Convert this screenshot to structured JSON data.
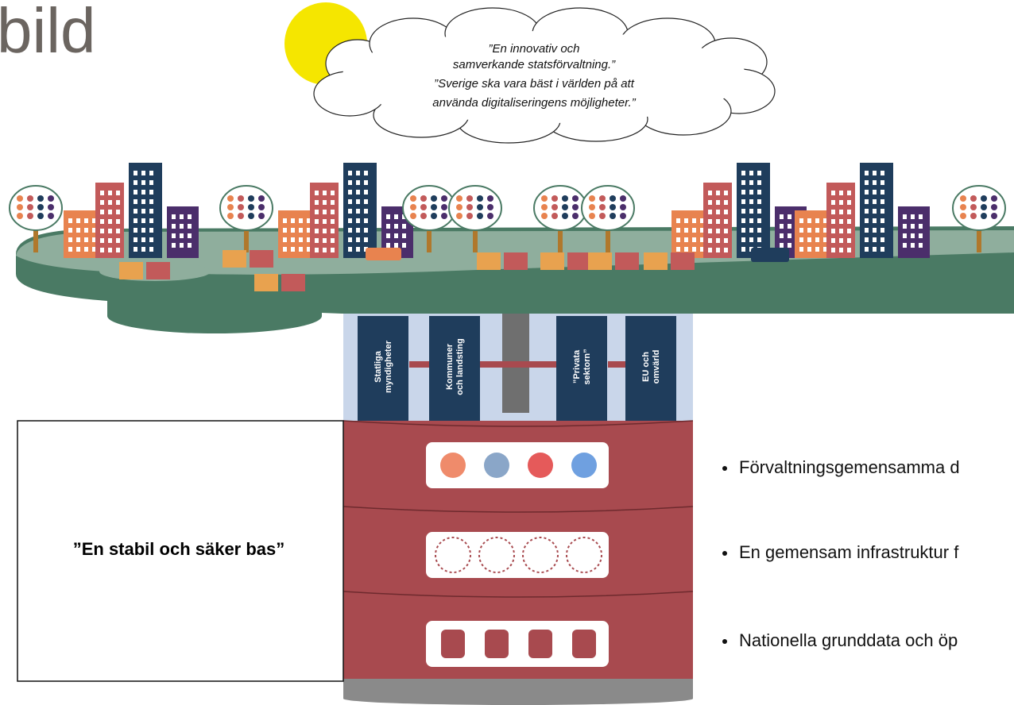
{
  "header": {
    "title": "bild"
  },
  "vision": {
    "lines": [
      "”En innovativ och",
      "samverkande statsförvaltning.”",
      "”Sverige ska vara bäst i världen på att",
      "använda digitaliseringens möjligheter.”"
    ]
  },
  "pillars": [
    [
      "Statliga",
      "myndigheter"
    ],
    [
      "Kommuner",
      "och landsting"
    ],
    [
      "”Privata",
      "sektorn”"
    ],
    [
      "EU och",
      "omvärld"
    ]
  ],
  "base": {
    "label": "”En stabil och säker bas”"
  },
  "bullets": [
    "Förvaltningsgemensamma d",
    "En gemensam infrastruktur f",
    "Nationella grunddata och öp"
  ]
}
